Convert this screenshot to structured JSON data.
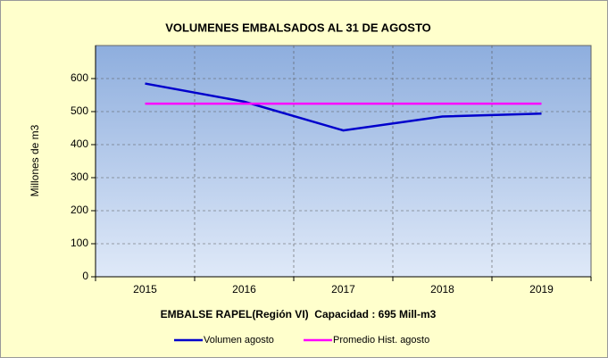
{
  "chart_data": {
    "type": "line",
    "title": "VOLUMENES EMBALSADOS AL 31 DE AGOSTO",
    "x_label": "EMBALSE RAPEL(Región VI)  Capacidad : 695 Mill-m3",
    "y_label": "Millones de m3",
    "categories": [
      "2015",
      "2016",
      "2017",
      "2018",
      "2019"
    ],
    "series": [
      {
        "name": "Volumen agosto",
        "color": "#0000cc",
        "values": [
          585,
          530,
          443,
          485,
          494
        ]
      },
      {
        "name": "Promedio Hist. agosto",
        "color": "#ff00ff",
        "values": [
          524,
          524,
          524,
          524,
          524
        ]
      }
    ],
    "ylim": [
      0,
      700
    ],
    "yticks": [
      0,
      100,
      200,
      300,
      400,
      500,
      600
    ],
    "grid": true,
    "legend": "bottom"
  }
}
